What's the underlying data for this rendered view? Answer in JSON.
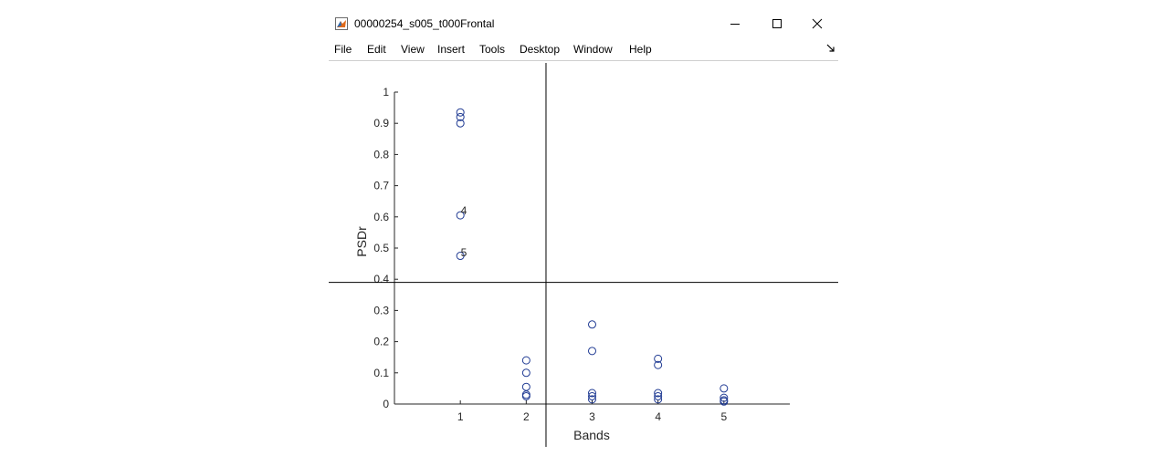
{
  "window": {
    "title": "00000254_s005_t000Frontal",
    "controls": {
      "minimize": "minimize-icon",
      "maximize": "maximize-icon",
      "close": "close-icon"
    }
  },
  "menubar": {
    "items": [
      "File",
      "Edit",
      "View",
      "Insert",
      "Tools",
      "Desktop",
      "Window",
      "Help"
    ],
    "dock_icon": "dock-arrow-icon"
  },
  "chart_data": {
    "type": "scatter",
    "xlabel": "Bands",
    "ylabel": "PSDr",
    "xlim": [
      0,
      6
    ],
    "ylim": [
      0,
      1
    ],
    "x_ticks": [
      1,
      2,
      3,
      4,
      5
    ],
    "y_ticks": [
      0,
      0.1,
      0.2,
      0.3,
      0.4,
      0.5,
      0.6,
      0.7,
      0.8,
      0.9,
      1
    ],
    "y_tick_labels": [
      "0",
      "0.1",
      "0.2",
      "0.3",
      "0.4",
      "0.5",
      "0.6",
      "0.7",
      "0.8",
      "0.9",
      "1"
    ],
    "grid": false,
    "marker": "open circle",
    "marker_color": "#1f3a93",
    "points": [
      {
        "x": 1,
        "y": 0.935
      },
      {
        "x": 1,
        "y": 0.92
      },
      {
        "x": 1,
        "y": 0.9
      },
      {
        "x": 1,
        "y": 0.605
      },
      {
        "x": 1,
        "y": 0.475
      },
      {
        "x": 2,
        "y": 0.14
      },
      {
        "x": 2,
        "y": 0.1
      },
      {
        "x": 2,
        "y": 0.055
      },
      {
        "x": 2,
        "y": 0.03
      },
      {
        "x": 2,
        "y": 0.025
      },
      {
        "x": 3,
        "y": 0.255
      },
      {
        "x": 3,
        "y": 0.17
      },
      {
        "x": 3,
        "y": 0.035
      },
      {
        "x": 3,
        "y": 0.025
      },
      {
        "x": 3,
        "y": 0.015
      },
      {
        "x": 4,
        "y": 0.145
      },
      {
        "x": 4,
        "y": 0.125
      },
      {
        "x": 4,
        "y": 0.035
      },
      {
        "x": 4,
        "y": 0.025
      },
      {
        "x": 4,
        "y": 0.015
      },
      {
        "x": 5,
        "y": 0.05
      },
      {
        "x": 5,
        "y": 0.02
      },
      {
        "x": 5,
        "y": 0.012
      },
      {
        "x": 5,
        "y": 0.008
      }
    ],
    "annotations": [
      {
        "text": "4",
        "x": 1,
        "y": 0.62
      },
      {
        "text": "5",
        "x": 1,
        "y": 0.485
      }
    ],
    "crosshair": {
      "x": 2.3,
      "y": 0.39
    }
  }
}
